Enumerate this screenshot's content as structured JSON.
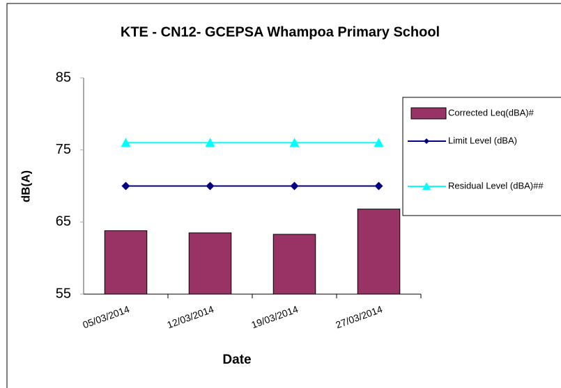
{
  "chart_data": {
    "type": "bar",
    "title": "KTE - CN12- GCEPSA Whampoa Primary School",
    "x_label": "Date",
    "y_label": "dB(A)",
    "categories": [
      "05/03/2014",
      "12/03/2014",
      "19/03/2014",
      "27/03/2014"
    ],
    "series": [
      {
        "name": "Corrected Leq(dBA)#",
        "type": "bar",
        "color": "#993366",
        "values": [
          63.8,
          63.5,
          63.3,
          66.8
        ]
      },
      {
        "name": "Limit Level (dBA)",
        "type": "line",
        "marker": "diamond",
        "color": "#000080",
        "values": [
          70,
          70,
          70,
          70
        ]
      },
      {
        "name": "Residual Level (dBA)##",
        "type": "line",
        "marker": "triangle",
        "color": "#00FFFF",
        "values": [
          76,
          76,
          76,
          76
        ]
      }
    ],
    "ylim": [
      55,
      85
    ],
    "yticks": [
      55,
      65,
      75,
      85
    ],
    "grid": false,
    "legend": "right"
  }
}
